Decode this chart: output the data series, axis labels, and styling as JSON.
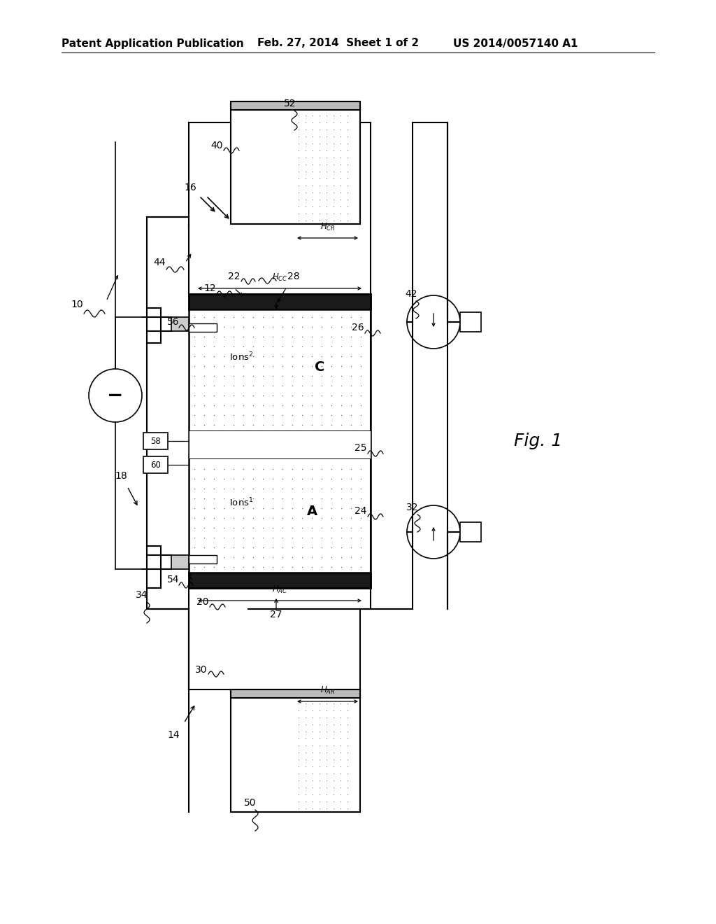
{
  "header_left": "Patent Application Publication",
  "header_mid": "Feb. 27, 2014  Sheet 1 of 2",
  "header_right": "US 2014/0057140 A1",
  "bg_color": "#ffffff",
  "lc": "#000000",
  "fig_label": "Fig. 1"
}
